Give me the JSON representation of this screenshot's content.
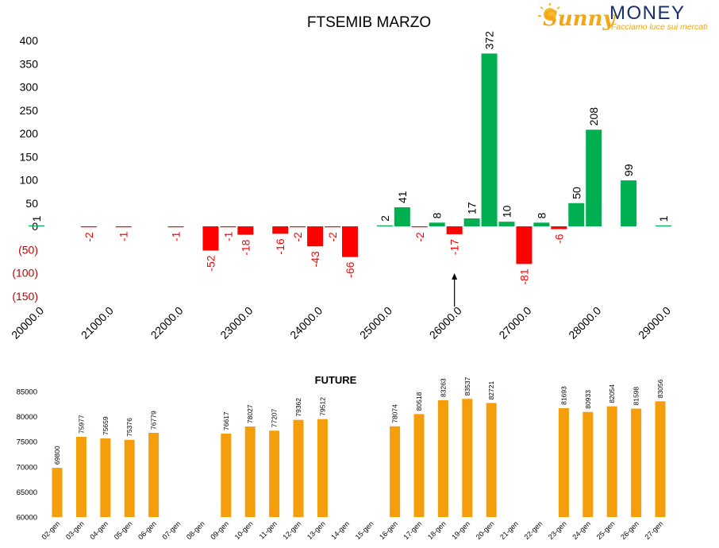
{
  "logo": {
    "brand_left": "Sunny",
    "brand_right": "MONEY",
    "tagline": "Facciamo luce sui mercati",
    "colors": {
      "sunny": "#f3a712",
      "money": "#1a2f6e",
      "sun": "#f7b733"
    }
  },
  "colors": {
    "positive": "#00b050",
    "negative": "#ff0000",
    "future_bar": "#f59e0b",
    "axis_text": "#000000",
    "negative_tick_text": "#c00000"
  },
  "chart_data": [
    {
      "type": "bar",
      "title": "FTSEMIB MARZO",
      "xlabel": "",
      "ylabel": "",
      "ylim": [
        -150,
        400
      ],
      "y_ticks": [
        400,
        350,
        300,
        250,
        200,
        150,
        100,
        50,
        0,
        -50,
        -100,
        -150
      ],
      "y_tick_labels": [
        "400",
        "350",
        "300",
        "250",
        "200",
        "150",
        "100",
        "50",
        "0",
        "(50)",
        "(100)",
        "(150)"
      ],
      "x_range": [
        20000,
        29000
      ],
      "x_tick_labels": [
        "20000.0",
        "21000.0",
        "22000.0",
        "23000.0",
        "24000.0",
        "25000.0",
        "26000.0",
        "27000.0",
        "28000.0",
        "29000.0"
      ],
      "grid": false,
      "strikes": [
        20000,
        20250,
        20500,
        20750,
        21000,
        21250,
        21500,
        21750,
        22000,
        22250,
        22500,
        22750,
        23000,
        23250,
        23500,
        23750,
        24000,
        24250,
        24500,
        24750,
        25000,
        25250,
        25500,
        25750,
        26000,
        26250,
        26500,
        26750,
        27000,
        27250,
        27500,
        27750,
        28000,
        28250,
        28500,
        28750,
        29000
      ],
      "values": [
        {
          "x": 20000,
          "y": 1,
          "label": "1"
        },
        {
          "x": 20750,
          "y": -2,
          "label": "-2"
        },
        {
          "x": 21250,
          "y": -1,
          "label": "-1"
        },
        {
          "x": 22000,
          "y": -1,
          "label": "-1"
        },
        {
          "x": 22500,
          "y": -52,
          "label": "-52"
        },
        {
          "x": 22750,
          "y": -1,
          "label": "-1"
        },
        {
          "x": 23000,
          "y": -18,
          "label": "-18"
        },
        {
          "x": 23500,
          "y": -16,
          "label": "-16"
        },
        {
          "x": 23750,
          "y": -2,
          "label": "-2"
        },
        {
          "x": 24000,
          "y": -43,
          "label": "-43"
        },
        {
          "x": 24250,
          "y": -2,
          "label": "-2"
        },
        {
          "x": 24500,
          "y": -66,
          "label": "-66"
        },
        {
          "x": 25000,
          "y": 2,
          "label": "2"
        },
        {
          "x": 25250,
          "y": 41,
          "label": "41"
        },
        {
          "x": 25500,
          "y": -2,
          "label": "-2"
        },
        {
          "x": 25750,
          "y": 8,
          "label": "8"
        },
        {
          "x": 26000,
          "y": -17,
          "label": "-17"
        },
        {
          "x": 26250,
          "y": 17,
          "label": "17"
        },
        {
          "x": 26500,
          "y": 372,
          "label": "372"
        },
        {
          "x": 26750,
          "y": 10,
          "label": "10"
        },
        {
          "x": 27000,
          "y": -81,
          "label": "-81"
        },
        {
          "x": 27250,
          "y": 8,
          "label": "8"
        },
        {
          "x": 27500,
          "y": -6,
          "label": "-6"
        },
        {
          "x": 27750,
          "y": 50,
          "label": "50"
        },
        {
          "x": 28000,
          "y": 208,
          "label": "208"
        },
        {
          "x": 28500,
          "y": 99,
          "label": "99"
        },
        {
          "x": 29000,
          "y": 1,
          "label": "1"
        }
      ],
      "annotation": {
        "type": "arrow-up",
        "x": 26000
      }
    },
    {
      "type": "bar",
      "title": "FUTURE",
      "xlabel": "",
      "ylabel": "",
      "ylim": [
        60000,
        85000
      ],
      "y_ticks": [
        85000,
        80000,
        75000,
        70000,
        65000,
        60000
      ],
      "grid": false,
      "categories": [
        "02-gen",
        "03-gen",
        "04-gen",
        "05-gen",
        "06-gen",
        "07-gen",
        "08-gen",
        "09-gen",
        "10-gen",
        "11-gen",
        "12-gen",
        "13-gen",
        "14-gen",
        "15-gen",
        "16-gen",
        "17-gen",
        "18-gen",
        "19-gen",
        "20-gen",
        "21-gen",
        "22-gen",
        "23-gen",
        "24-gen",
        "25-gen",
        "26-gen",
        "27-gen"
      ],
      "values": [
        69800,
        75977,
        75659,
        75376,
        76779,
        null,
        null,
        76617,
        78027,
        77207,
        79362,
        79512,
        null,
        null,
        78074,
        80518,
        83263,
        83537,
        82721,
        null,
        null,
        81693,
        80933,
        82054,
        81598,
        83056
      ]
    }
  ]
}
